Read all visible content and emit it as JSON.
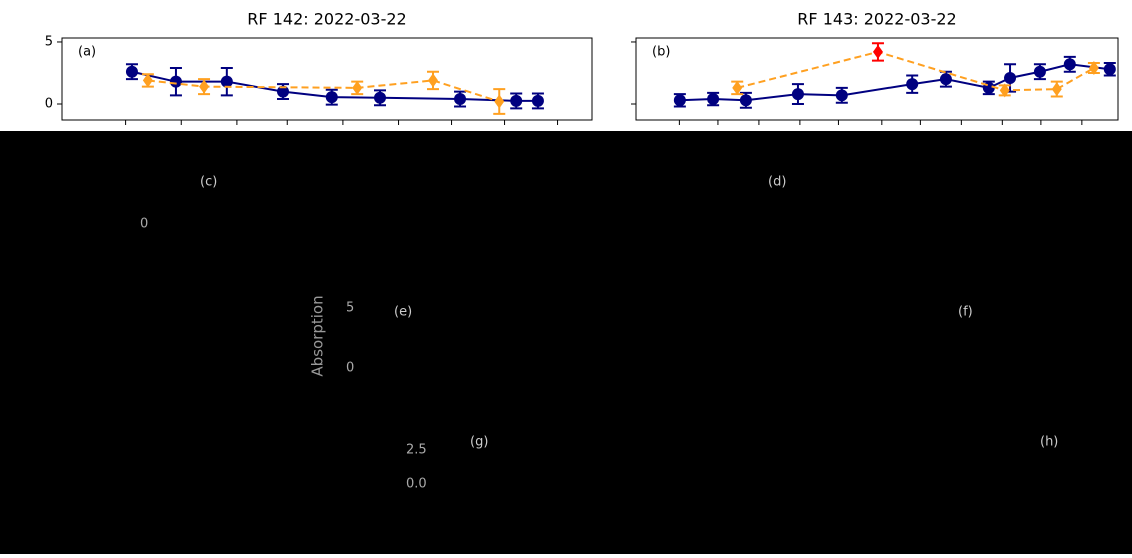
{
  "chart_data": [
    {
      "type": "errorbar-line",
      "title": "RF 142: 2022-03-22",
      "annotation": "(a)",
      "xlim": [
        0,
        10
      ],
      "xticks": [
        1.2,
        2.25,
        3.3,
        4.25,
        5.3,
        6.35,
        7.35,
        8.35,
        9.35
      ],
      "ylim": [
        -1.29,
        5.32
      ],
      "yticks": [
        0,
        5
      ],
      "series": [
        {
          "color": "#000080",
          "marker": "circle",
          "linestyle": "solid",
          "x": [
            1.32,
            2.15,
            3.11,
            4.17,
            5.09,
            6.0,
            7.51,
            8.57,
            8.98
          ],
          "values": [
            2.6,
            1.8,
            1.8,
            1.0,
            0.55,
            0.5,
            0.4,
            0.25,
            0.25
          ],
          "errors": [
            0.6,
            1.1,
            1.1,
            0.6,
            0.6,
            0.6,
            0.6,
            0.6,
            0.6
          ]
        },
        {
          "color": "#ffa020",
          "marker": "diamond",
          "linestyle": "dashed",
          "x": [
            1.62,
            2.68,
            5.57,
            7.0,
            8.25
          ],
          "values": [
            1.9,
            1.4,
            1.3,
            1.9,
            0.2
          ],
          "errors": [
            0.5,
            0.6,
            0.5,
            0.7,
            1.0
          ]
        }
      ]
    },
    {
      "type": "errorbar-line",
      "title": "RF 143: 2022-03-22",
      "annotation": "(b)",
      "xlim": [
        0,
        10
      ],
      "xticks": [
        0.9,
        1.7,
        2.55,
        3.4,
        4.2,
        5.1,
        5.9,
        6.75,
        7.6,
        8.4,
        9.25
      ],
      "ylim": [
        -1.29,
        5.32
      ],
      "yticks": [
        0,
        5
      ],
      "series": [
        {
          "color": "#000080",
          "marker": "circle",
          "linestyle": "solid",
          "x": [
            0.91,
            1.6,
            2.28,
            3.36,
            4.27,
            5.73,
            6.43,
            7.32,
            7.76,
            8.38,
            9.0,
            9.83
          ],
          "values": [
            0.3,
            0.4,
            0.3,
            0.8,
            0.7,
            1.6,
            2.0,
            1.3,
            2.1,
            2.6,
            3.2,
            2.8
          ],
          "errors": [
            0.5,
            0.5,
            0.6,
            0.8,
            0.6,
            0.7,
            0.6,
            0.5,
            1.1,
            0.6,
            0.6,
            0.5
          ]
        },
        {
          "color": "#ffa020",
          "marker": "diamond",
          "linestyle": "dashed",
          "x": [
            2.1,
            5.02,
            7.65,
            8.73,
            9.5
          ],
          "values": [
            1.3,
            4.2,
            1.1,
            1.2,
            2.9
          ],
          "errors": [
            0.5,
            0.7,
            0.4,
            0.6,
            0.4
          ],
          "point_colors": [
            "#ffa020",
            "#ff0000",
            "#ffa020",
            "#ffa020",
            "#ffa020"
          ]
        }
      ]
    }
  ],
  "lower_panels": {
    "labels": [
      "(c)",
      "(d)",
      "(e)",
      "(f)",
      "(g)",
      "(h)"
    ],
    "tick_labels": [
      "0",
      "5",
      "0",
      "2.5",
      "0.0"
    ],
    "axis_label": "Absorption"
  }
}
